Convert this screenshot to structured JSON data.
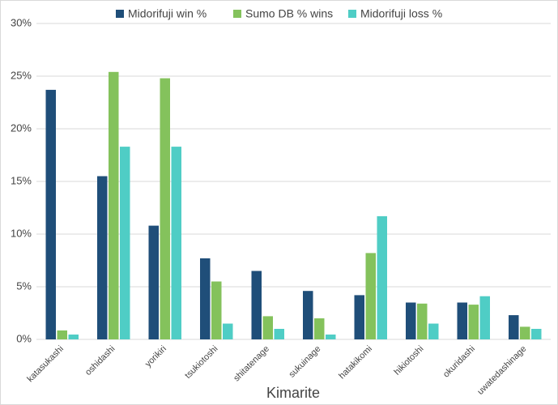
{
  "chart_data": {
    "type": "bar",
    "x_label": "Kimarite",
    "categories": [
      "katasukashi",
      "oshidashi",
      "yorikiri",
      "tsukiotoshi",
      "shitatenage",
      "sukuinage",
      "hatakikomi",
      "hikiotoshi",
      "okuridashi",
      "uwatedashinage"
    ],
    "series": [
      {
        "name": "Midorifuji win %",
        "color": "#1f4e79",
        "values": [
          23.7,
          15.5,
          10.8,
          7.7,
          6.5,
          4.6,
          4.2,
          3.5,
          3.5,
          2.3
        ]
      },
      {
        "name": "Sumo DB % wins",
        "color": "#84c25c",
        "values": [
          0.85,
          25.4,
          24.8,
          5.5,
          2.2,
          2.0,
          8.2,
          3.4,
          3.3,
          1.2
        ]
      },
      {
        "name": "Midorifuji loss %",
        "color": "#4fcdc5",
        "values": [
          0.46,
          18.3,
          18.3,
          1.5,
          1.0,
          0.46,
          11.7,
          1.5,
          4.1,
          1.0
        ]
      }
    ],
    "ylim": [
      0,
      30
    ],
    "yticks": [
      {
        "value": 0,
        "label": "0%"
      },
      {
        "value": 5,
        "label": "5%"
      },
      {
        "value": 10,
        "label": "10%"
      },
      {
        "value": 15,
        "label": "15%"
      },
      {
        "value": 20,
        "label": "20%"
      },
      {
        "value": 25,
        "label": "25%"
      },
      {
        "value": 30,
        "label": "30%"
      }
    ],
    "grid": true,
    "legend": "top"
  }
}
